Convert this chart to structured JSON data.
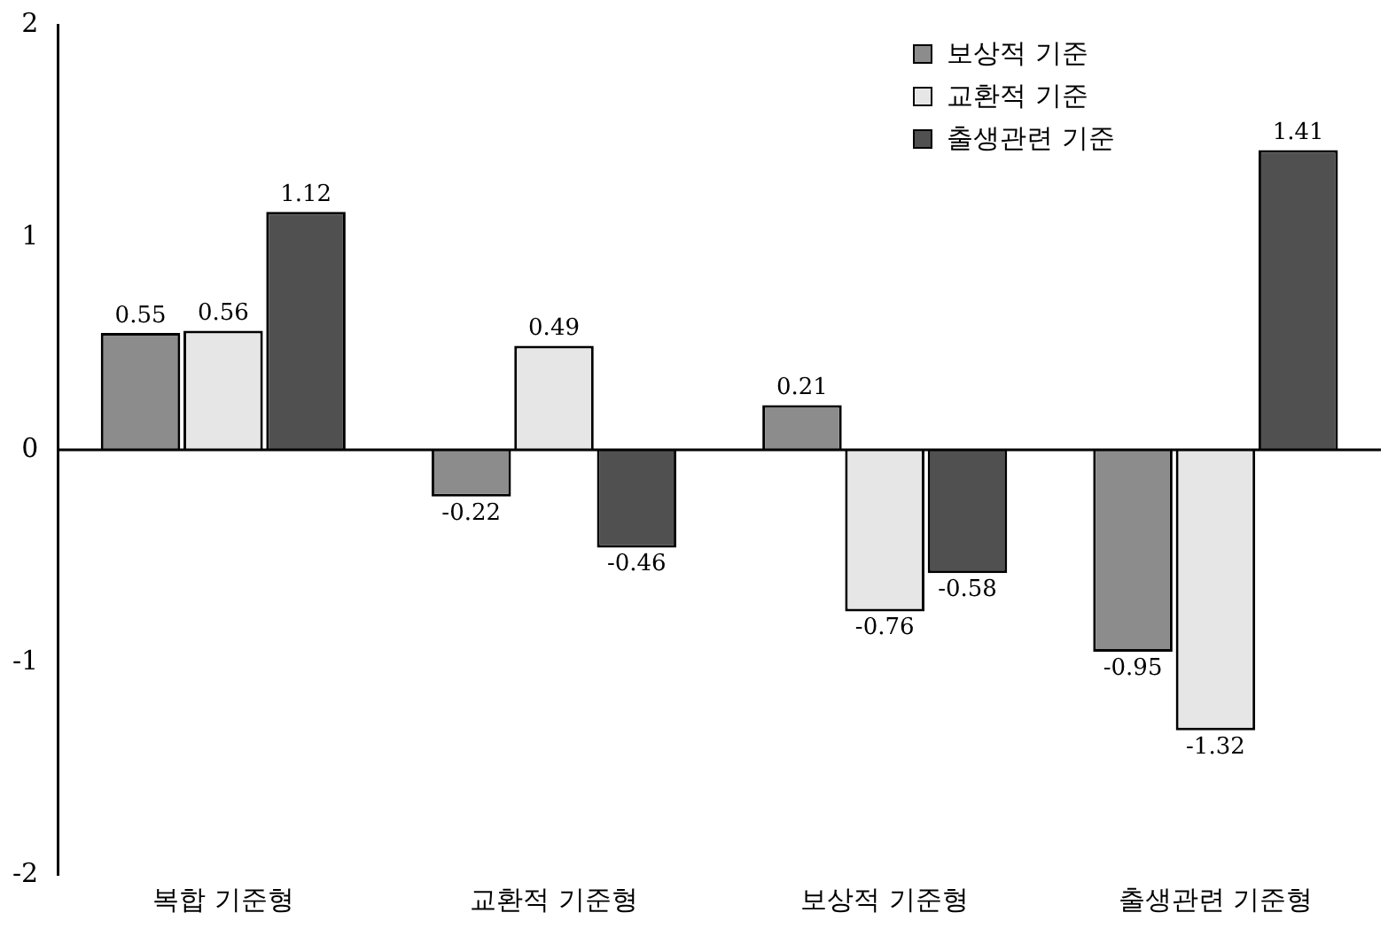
{
  "chart_data": {
    "type": "bar",
    "categories": [
      "복합 기준형",
      "교환적 기준형",
      "보상적 기준형",
      "출생관련 기준형"
    ],
    "series": [
      {
        "name": "보상적 기준",
        "color": "#8c8c8c",
        "values": [
          0.55,
          -0.22,
          0.21,
          -0.95
        ]
      },
      {
        "name": "교환적 기준",
        "color": "#e6e6e6",
        "values": [
          0.56,
          0.49,
          -0.76,
          -1.32
        ]
      },
      {
        "name": "출생관련 기준",
        "color": "#505050",
        "values": [
          1.12,
          -0.46,
          -0.58,
          1.41
        ]
      }
    ],
    "ylim": [
      -2,
      2
    ],
    "yticks": [
      -2,
      -1,
      0,
      1,
      2
    ],
    "grid": false,
    "ref_lines": [
      {
        "axis": "y",
        "value": 0,
        "color": "#000000"
      }
    ],
    "legend": "top right",
    "data_labels": true
  }
}
